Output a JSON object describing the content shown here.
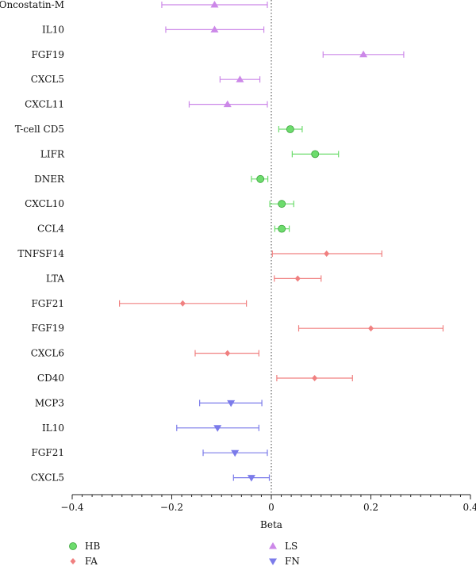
{
  "chart_data": {
    "type": "scatter",
    "subtype": "forest-plot",
    "xlabel": "Beta",
    "xlim": [
      -0.4,
      0.4
    ],
    "xticks": [
      -0.4,
      -0.2,
      0,
      0.2,
      0.4
    ],
    "xtick_labels": [
      "−0.4",
      "−0.2",
      "0",
      "0.2",
      "0.4"
    ],
    "reference_line": 0,
    "legend_position": "bottom",
    "series": [
      {
        "name": "HB",
        "marker": "circle",
        "color": "#6ddc6d",
        "points": [
          {
            "label": "T-cell CD5",
            "beta": 0.038,
            "lo": 0.015,
            "hi": 0.062
          },
          {
            "label": "LIFR",
            "beta": 0.088,
            "lo": 0.042,
            "hi": 0.135
          },
          {
            "label": "DNER",
            "beta": -0.022,
            "lo": -0.04,
            "hi": -0.007
          },
          {
            "label": "CXCL10",
            "beta": 0.021,
            "lo": -0.003,
            "hi": 0.045
          },
          {
            "label": "CCL4",
            "beta": 0.021,
            "lo": 0.007,
            "hi": 0.036
          }
        ]
      },
      {
        "name": "FA",
        "marker": "diamond",
        "color": "#f08080",
        "points": [
          {
            "label": "TNFSF14",
            "beta": 0.111,
            "lo": 0.002,
            "hi": 0.222
          },
          {
            "label": "LTA",
            "beta": 0.053,
            "lo": 0.006,
            "hi": 0.1
          },
          {
            "label": "FGF21",
            "beta": -0.178,
            "lo": -0.305,
            "hi": -0.05
          },
          {
            "label": "FGF19",
            "beta": 0.2,
            "lo": 0.055,
            "hi": 0.345
          },
          {
            "label": "CXCL6",
            "beta": -0.088,
            "lo": -0.153,
            "hi": -0.025
          },
          {
            "label": "CD40",
            "beta": 0.087,
            "lo": 0.011,
            "hi": 0.163
          }
        ]
      },
      {
        "name": "LS",
        "marker": "triangle-up",
        "color": "#cc88e8",
        "points": [
          {
            "label": "Oncostatin-M",
            "beta": -0.114,
            "lo": -0.22,
            "hi": -0.008
          },
          {
            "label": "IL10",
            "beta": -0.114,
            "lo": -0.212,
            "hi": -0.015
          },
          {
            "label": "FGF19",
            "beta": 0.185,
            "lo": 0.104,
            "hi": 0.266
          },
          {
            "label": "CXCL5",
            "beta": -0.063,
            "lo": -0.103,
            "hi": -0.023
          },
          {
            "label": "CXCL11",
            "beta": -0.088,
            "lo": -0.165,
            "hi": -0.008
          }
        ]
      },
      {
        "name": "FN",
        "marker": "triangle-down",
        "color": "#7b7bea",
        "points": [
          {
            "label": "MCP3",
            "beta": -0.081,
            "lo": -0.144,
            "hi": -0.019
          },
          {
            "label": "IL10",
            "beta": -0.108,
            "lo": -0.19,
            "hi": -0.025
          },
          {
            "label": "FGF21",
            "beta": -0.073,
            "lo": -0.137,
            "hi": -0.008
          },
          {
            "label": "CXCL5",
            "beta": -0.04,
            "lo": -0.076,
            "hi": -0.004
          }
        ]
      }
    ],
    "row_order": [
      {
        "series": "LS",
        "label": "Oncostatin-M"
      },
      {
        "series": "LS",
        "label": "IL10"
      },
      {
        "series": "LS",
        "label": "FGF19"
      },
      {
        "series": "LS",
        "label": "CXCL5"
      },
      {
        "series": "LS",
        "label": "CXCL11"
      },
      {
        "series": "HB",
        "label": "T-cell CD5"
      },
      {
        "series": "HB",
        "label": "LIFR"
      },
      {
        "series": "HB",
        "label": "DNER"
      },
      {
        "series": "HB",
        "label": "CXCL10"
      },
      {
        "series": "HB",
        "label": "CCL4"
      },
      {
        "series": "FA",
        "label": "TNFSF14"
      },
      {
        "series": "FA",
        "label": "LTA"
      },
      {
        "series": "FA",
        "label": "FGF21"
      },
      {
        "series": "FA",
        "label": "FGF19"
      },
      {
        "series": "FA",
        "label": "CXCL6"
      },
      {
        "series": "FA",
        "label": "CD40"
      },
      {
        "series": "FN",
        "label": "MCP3"
      },
      {
        "series": "FN",
        "label": "IL10"
      },
      {
        "series": "FN",
        "label": "FGF21"
      },
      {
        "series": "FN",
        "label": "CXCL5"
      }
    ],
    "legend": [
      "HB",
      "FA",
      "LS",
      "FN"
    ]
  }
}
